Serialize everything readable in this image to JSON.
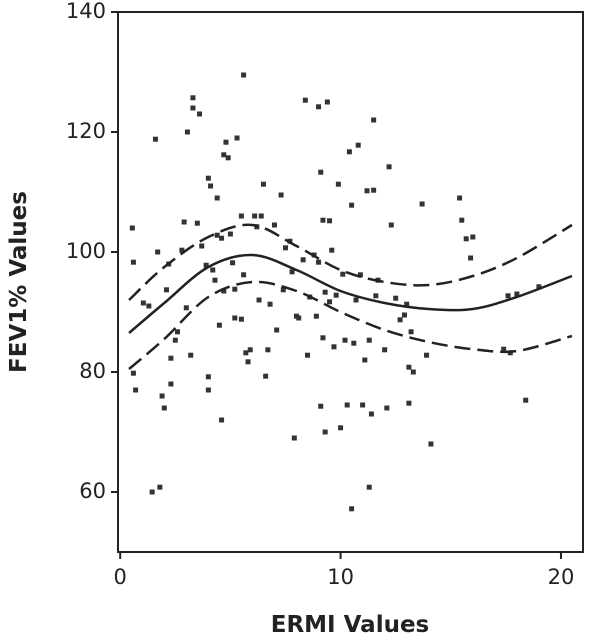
{
  "chart_data": {
    "type": "scatter",
    "x_label": "ERMI Values",
    "y_label": "FEV1% Values",
    "xlim": [
      -0.1,
      21
    ],
    "ylim": [
      50,
      140
    ],
    "xticks": [
      0,
      10,
      20
    ],
    "yticks": [
      60,
      80,
      100,
      120,
      140
    ],
    "grid": false,
    "color": "#333333",
    "x": [
      0.55,
      0.6,
      0.6,
      0.7,
      1.05,
      1.3,
      1.45,
      1.8,
      1.6,
      1.7,
      1.9,
      2,
      2.1,
      2.2,
      2.3,
      2.3,
      2.5,
      2.6,
      2.8,
      2.9,
      3,
      3.05,
      3.2,
      3.3,
      3.3,
      3.6,
      3.5,
      3.7,
      3.9,
      4,
      4,
      4,
      4.1,
      4.2,
      4.3,
      4.4,
      4.4,
      4.5,
      4.6,
      4.6,
      4.7,
      4.7,
      4.8,
      4.9,
      5,
      5.1,
      5.2,
      5.2,
      5.3,
      5.5,
      5.5,
      5.6,
      5.6,
      5.7,
      5.8,
      5.9,
      6.1,
      6.2,
      6.3,
      6.4,
      6.5,
      6.6,
      6.7,
      6.8,
      7,
      7.1,
      7.3,
      7.4,
      7.5,
      7.7,
      7.8,
      7.9,
      8,
      8.1,
      8.3,
      8.4,
      8.5,
      8.6,
      8.8,
      8.9,
      9,
      9,
      9.1,
      9.1,
      9.2,
      9.2,
      9.3,
      9.3,
      9.4,
      9.5,
      9.5,
      9.6,
      9.7,
      9.8,
      9.9,
      10,
      10.1,
      10.2,
      10.3,
      10.4,
      10.5,
      10.5,
      10.6,
      10.7,
      10.8,
      10.9,
      11,
      11.1,
      11.2,
      11.3,
      11.4,
      11.3,
      11.5,
      11.5,
      11.6,
      11.7,
      12,
      12.1,
      12.2,
      12.3,
      12.5,
      12.7,
      12.9,
      13,
      13.1,
      13.1,
      13.2,
      13.3,
      13.7,
      13.9,
      14.1,
      15.4,
      15.5,
      15.7,
      16,
      15.9,
      17.4,
      17.6,
      17.7,
      18,
      18.4,
      19
    ],
    "values": [
      104,
      98.3,
      79.8,
      77,
      91.5,
      91,
      60,
      60.8,
      118.8,
      100,
      76,
      74,
      93.7,
      98,
      78,
      82.3,
      85.3,
      86.7,
      100.3,
      105,
      90.7,
      120,
      82.8,
      125.7,
      124,
      123,
      104.8,
      101,
      97.8,
      112.3,
      79.2,
      77,
      111,
      97,
      95.3,
      109,
      102.8,
      87.8,
      102.3,
      72,
      93.5,
      116.2,
      118.3,
      115.7,
      103,
      98.2,
      93.8,
      89,
      119,
      88.8,
      106,
      96.2,
      129.5,
      83.2,
      81.7,
      83.7,
      106,
      104.2,
      92,
      106,
      111.3,
      79.3,
      83.7,
      91.3,
      104.5,
      87,
      109.5,
      93.7,
      100.7,
      101.8,
      96.7,
      69,
      89.3,
      89,
      98.7,
      125.3,
      82.8,
      92.5,
      99.5,
      89.3,
      124.2,
      98.3,
      74.3,
      113.3,
      105.3,
      85.7,
      93.3,
      70,
      125,
      105.2,
      91.7,
      100.3,
      84.2,
      92.8,
      111.3,
      70.7,
      96.3,
      85.3,
      74.5,
      116.7,
      107.8,
      57.2,
      84.8,
      92,
      117.8,
      96.2,
      74.5,
      82,
      110.2,
      85.3,
      73,
      60.8,
      110.3,
      122,
      92.7,
      95.3,
      83.7,
      74,
      114.2,
      104.5,
      92.3,
      88.7,
      89.5,
      91.3,
      80.8,
      74.8,
      86.7,
      80,
      108,
      82.8,
      68,
      109,
      105.3,
      102.2,
      102.5,
      99,
      83.8,
      92.7,
      83.2,
      93,
      75.3,
      94.2
    ],
    "curves": [
      {
        "style": "solid",
        "color": "#222222",
        "x": [
          0.4,
          2,
          4,
          6,
          8,
          10,
          12,
          14,
          16,
          18,
          20.5
        ],
        "values": [
          86.5,
          91.5,
          97.5,
          99.5,
          97,
          93.5,
          91.5,
          90.5,
          90.5,
          92.5,
          96
        ]
      },
      {
        "style": "dashed",
        "color": "#222222",
        "x": [
          0.4,
          2,
          4,
          6,
          8,
          10,
          12,
          14,
          16,
          18,
          20.5
        ],
        "values": [
          92,
          97.5,
          102.5,
          104.5,
          101,
          97,
          95,
          94.5,
          96,
          99,
          104.5
        ]
      },
      {
        "style": "dashed",
        "color": "#222222",
        "x": [
          0.4,
          2,
          4,
          6,
          8,
          10,
          12,
          14,
          16,
          18,
          20.5
        ],
        "values": [
          80.5,
          85.5,
          92.5,
          95,
          93.5,
          90,
          87,
          85,
          83.8,
          83.5,
          86
        ]
      }
    ]
  }
}
